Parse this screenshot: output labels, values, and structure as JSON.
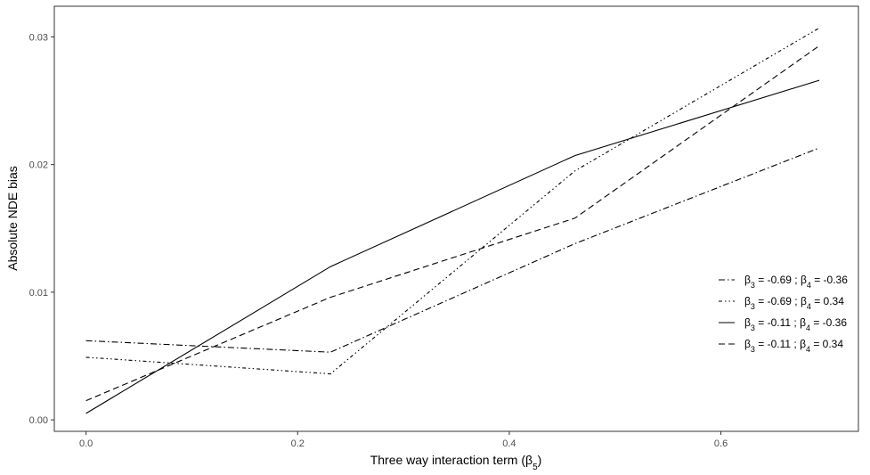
{
  "chart_data": {
    "type": "line",
    "xlabel": {
      "text": "Three way interaction term (",
      "greek": "β",
      "sub": "5",
      "close": ")"
    },
    "ylabel": "Absolute NDE bias",
    "xlim": [
      -0.03,
      0.73
    ],
    "ylim": [
      -0.0009,
      0.0324
    ],
    "x_ticks": [
      0.0,
      0.2,
      0.4,
      0.6
    ],
    "x_tick_labels": [
      "0.0",
      "0.2",
      "0.4",
      "0.6"
    ],
    "y_ticks": [
      0.0,
      0.01,
      0.02,
      0.03
    ],
    "y_tick_labels": [
      "0.00",
      "0.01",
      "0.02",
      "0.03"
    ],
    "grid": false,
    "legend_position": "right",
    "series": [
      {
        "b3": "-0.69",
        "b4": "-0.36",
        "linestyle": "dotdash",
        "x": [
          0.0,
          0.231,
          0.462,
          0.693
        ],
        "y": [
          0.0062,
          0.0053,
          0.0138,
          0.0213
        ]
      },
      {
        "b3": "-0.69",
        "b4": "0.34",
        "linestyle": "twodash",
        "x": [
          0.0,
          0.231,
          0.462,
          0.693
        ],
        "y": [
          0.0049,
          0.0036,
          0.0195,
          0.0307
        ]
      },
      {
        "b3": "-0.11",
        "b4": "-0.36",
        "linestyle": "solid",
        "x": [
          0.0,
          0.231,
          0.462,
          0.693
        ],
        "y": [
          0.0005,
          0.012,
          0.0207,
          0.0266
        ]
      },
      {
        "b3": "-0.11",
        "b4": "0.34",
        "linestyle": "dashed",
        "x": [
          0.0,
          0.231,
          0.462,
          0.693
        ],
        "y": [
          0.0015,
          0.0096,
          0.0158,
          0.0293
        ]
      }
    ]
  }
}
